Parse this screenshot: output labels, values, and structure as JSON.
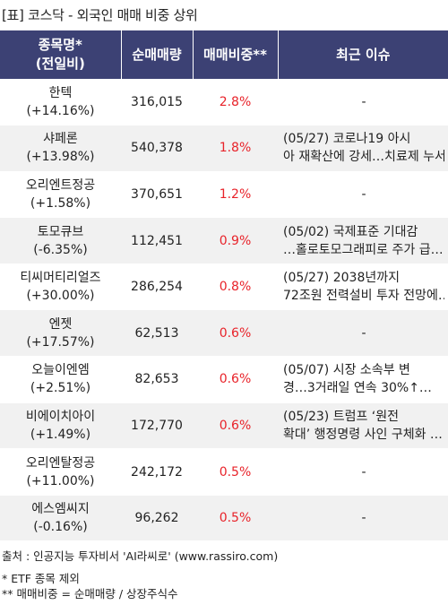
{
  "title": "[표] 코스닥 - 외국인 매매 비중 상위",
  "headers": {
    "name": "종목명*",
    "name_sub": "(전일비)",
    "volume": "순매매량",
    "ratio": "매매비중**",
    "issue": "최근 이슈"
  },
  "rows": [
    {
      "name": "한텍",
      "change": "(+14.16%)",
      "volume": "316,015",
      "ratio": "2.8%",
      "issue_line1": "-",
      "issue_line2": ""
    },
    {
      "name": "샤페론",
      "change": "(+13.98%)",
      "volume": "540,378",
      "ratio": "1.8%",
      "issue_line1": "(05/27) 코로나19 아시",
      "issue_line2": "아 재확산에 강세…치료제 누서"
    },
    {
      "name": "오리엔트정공",
      "change": "(+1.58%)",
      "volume": "370,651",
      "ratio": "1.2%",
      "issue_line1": "-",
      "issue_line2": ""
    },
    {
      "name": "토모큐브",
      "change": "(-6.35%)",
      "volume": "112,451",
      "ratio": "0.9%",
      "issue_line1": "(05/02) 국제표준 기대감",
      "issue_line2": "…홀로토모그래피로 주가 급…"
    },
    {
      "name": "티씨머티리얼즈",
      "change": "(+30.00%)",
      "volume": "286,254",
      "ratio": "0.8%",
      "issue_line1": "(05/27) 2038년까지",
      "issue_line2": "72조원 전력설비 투자 전망에…"
    },
    {
      "name": "엔젯",
      "change": "(+17.57%)",
      "volume": "62,513",
      "ratio": "0.6%",
      "issue_line1": "-",
      "issue_line2": ""
    },
    {
      "name": "오늘이엔엠",
      "change": "(+2.51%)",
      "volume": "82,653",
      "ratio": "0.6%",
      "issue_line1": "(05/07) 시장 소속부 변",
      "issue_line2": "경…3거래일 연속 30%↑…"
    },
    {
      "name": "비에이치아이",
      "change": "(+1.49%)",
      "volume": "172,770",
      "ratio": "0.6%",
      "issue_line1": "(05/23) 트럼프 ‘원전",
      "issue_line2": "확대’ 행정명령 사인 구체화 …"
    },
    {
      "name": "오리엔탈정공",
      "change": "(+11.00%)",
      "volume": "242,172",
      "ratio": "0.5%",
      "issue_line1": "-",
      "issue_line2": ""
    },
    {
      "name": "에스엠씨지",
      "change": "(-0.16%)",
      "volume": "96,262",
      "ratio": "0.5%",
      "issue_line1": "-",
      "issue_line2": ""
    }
  ],
  "footer": {
    "source": "출처 : 인공지능 투자비서 'AI라씨로' (www.rassiro.com)",
    "note1": "* ETF 종목 제외",
    "note2": "** 매매비중 = 순매매량 / 상장주식수"
  },
  "colors": {
    "header_bg": "#3c4174",
    "header_text": "#ffffff",
    "ratio_text": "#e8232a",
    "row_alt_bg": "#f1f1f1"
  }
}
